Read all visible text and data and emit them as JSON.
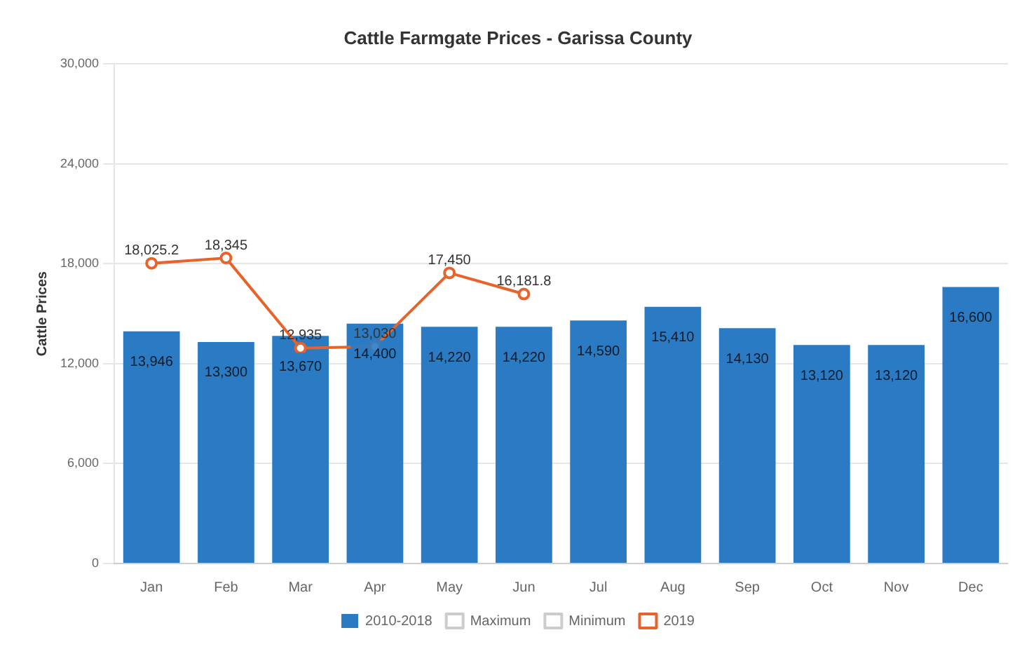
{
  "chart_data": {
    "type": "bar",
    "title": "Cattle Farmgate Prices - Garissa County",
    "ylabel": "Cattle Prices",
    "categories": [
      "Jan",
      "Feb",
      "Mar",
      "Apr",
      "May",
      "Jun",
      "Jul",
      "Aug",
      "Sep",
      "Oct",
      "Nov",
      "Dec"
    ],
    "series": [
      {
        "name": "2010-2018",
        "color": "#2a7bc4",
        "values": [
          13946,
          13300,
          13670,
          14400,
          14220,
          14220,
          14590,
          15410,
          14130,
          13120,
          13120,
          16600
        ],
        "value_labels": [
          "13,946",
          "13,300",
          "13,670",
          "14,400",
          "14,220",
          "14,220",
          "14,590",
          "15,410",
          "14,130",
          "13,120",
          "13,120",
          "16,600"
        ]
      },
      {
        "name": "Maximum",
        "type": "line",
        "color": "#cccccc",
        "values": [
          null,
          null,
          null,
          null,
          null,
          null,
          null,
          null,
          null,
          null,
          null,
          null
        ]
      },
      {
        "name": "Minimum",
        "type": "line",
        "color": "#cccccc",
        "values": [
          null,
          null,
          null,
          null,
          null,
          null,
          null,
          null,
          null,
          null,
          null,
          null
        ]
      },
      {
        "name": "2019",
        "type": "line",
        "color": "#e8632b",
        "values": [
          18025.2,
          18345,
          12935,
          13030,
          17450,
          16181.8,
          null,
          null,
          null,
          null,
          null,
          null
        ],
        "value_labels": [
          "18,025.2",
          "18,345",
          "12,935",
          "13,030",
          "17,450",
          "16,181.8",
          null,
          null,
          null,
          null,
          null,
          null
        ]
      }
    ],
    "ylim": [
      0,
      30000
    ],
    "yticks": [
      {
        "value": 0,
        "label": "0"
      },
      {
        "value": 6000,
        "label": "6,000"
      },
      {
        "value": 12000,
        "label": "12,000"
      },
      {
        "value": 18000,
        "label": "18,000"
      },
      {
        "value": 24000,
        "label": "24,000"
      },
      {
        "value": 30000,
        "label": "30,000"
      }
    ],
    "grid": "y",
    "legend": "bottom",
    "marker": "circle"
  }
}
